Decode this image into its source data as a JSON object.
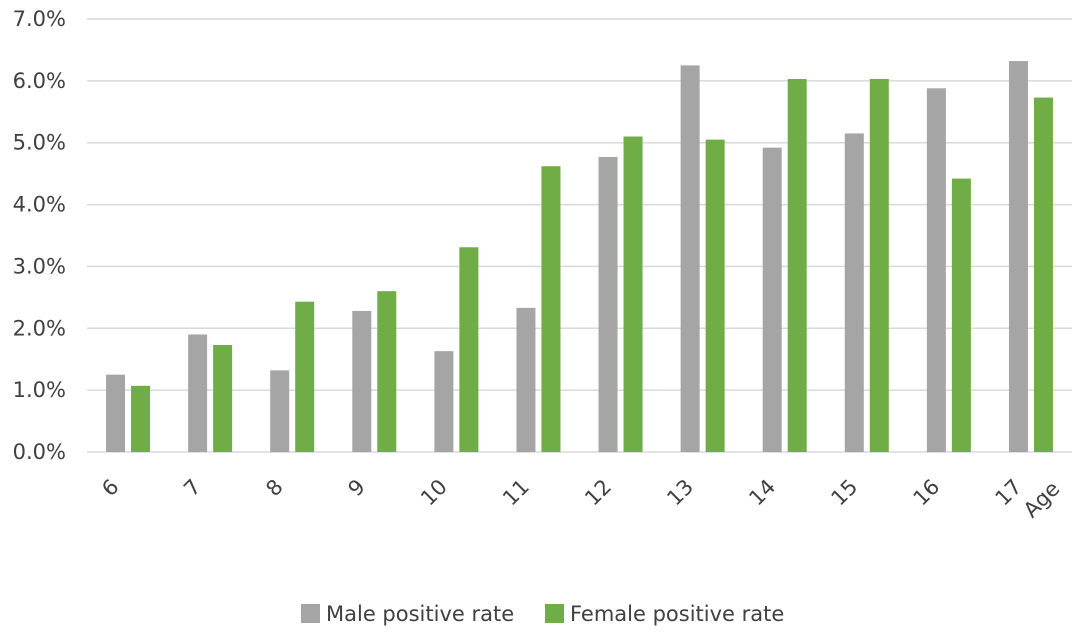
{
  "chart_data": {
    "type": "bar",
    "title": "",
    "xlabel": "Age",
    "ylabel": "",
    "categories": [
      "6",
      "7",
      "8",
      "9",
      "10",
      "11",
      "12",
      "13",
      "14",
      "15",
      "16",
      "17"
    ],
    "series": [
      {
        "name": "Male positive rate",
        "color": "#a5a5a5",
        "values": [
          1.25,
          1.9,
          1.32,
          2.28,
          1.63,
          2.33,
          4.77,
          6.25,
          4.92,
          5.15,
          5.88,
          6.32
        ]
      },
      {
        "name": "Female positive rate",
        "color": "#70ad47",
        "values": [
          1.07,
          1.73,
          2.43,
          2.6,
          3.31,
          4.62,
          5.1,
          5.05,
          6.03,
          6.03,
          4.42,
          5.73
        ]
      }
    ],
    "ylim": [
      0,
      7
    ],
    "yticks": [
      0,
      1,
      2,
      3,
      4,
      5,
      6,
      7
    ],
    "ytick_labels": [
      "0.0%",
      "1.0%",
      "2.0%",
      "3.0%",
      "4.0%",
      "5.0%",
      "6.0%",
      "7.0%"
    ],
    "grid": true,
    "legend_position": "bottom-center",
    "gridline_color": "#d9d9d9"
  }
}
